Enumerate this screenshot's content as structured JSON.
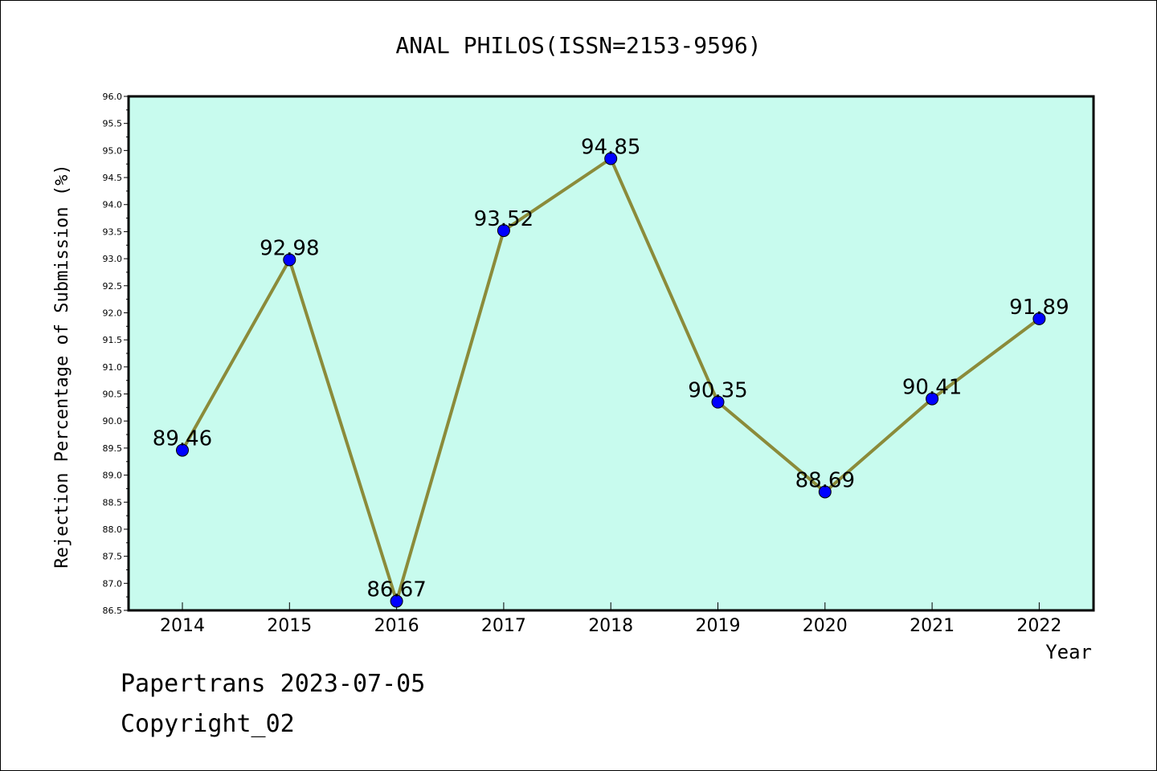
{
  "chart_data": {
    "type": "line",
    "title": "ANAL PHILOS(ISSN=2153-9596)",
    "xlabel": "Year",
    "ylabel": "Rejection Percentage of Submission (%)",
    "categories": [
      "2014",
      "2015",
      "2016",
      "2017",
      "2018",
      "2019",
      "2020",
      "2021",
      "2022"
    ],
    "values": [
      89.46,
      92.98,
      86.67,
      93.52,
      94.85,
      90.35,
      88.69,
      90.41,
      91.89
    ],
    "data_labels": [
      "89.46",
      "92.98",
      "86.67",
      "93.52",
      "94.85",
      "90.35",
      "88.69",
      "90.41",
      "91.89"
    ],
    "ylim": [
      86.5,
      96.0
    ],
    "yticks": [
      "86.5",
      "87.0",
      "87.5",
      "88.0",
      "88.5",
      "89.0",
      "89.5",
      "90.0",
      "90.5",
      "91.0",
      "91.5",
      "92.0",
      "92.5",
      "93.0",
      "93.5",
      "94.0",
      "94.5",
      "95.0",
      "95.5",
      "96.0"
    ],
    "grid": false,
    "colors": {
      "plot_background": "#c8fbee",
      "line": "#8b8b3a",
      "marker": "#0000ff",
      "marker_edge": "#000000"
    }
  },
  "footer": {
    "line1": "Papertrans 2023-07-05",
    "line2": "Copyright_02"
  }
}
